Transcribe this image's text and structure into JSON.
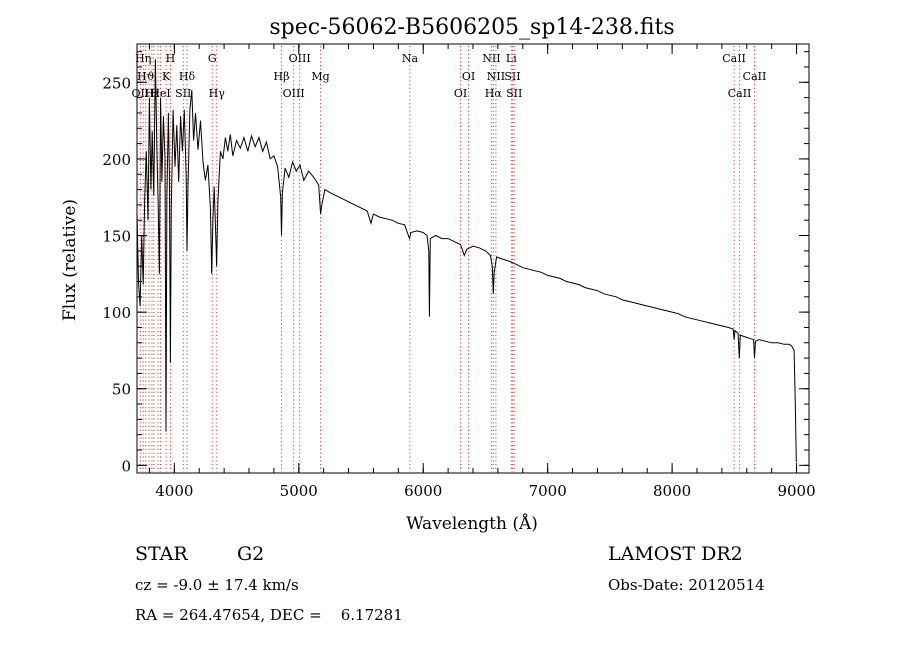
{
  "title": "spec-56062-B5606205_sp14-238.fits",
  "info": {
    "object_class": "STAR",
    "subclass": "G2",
    "survey": "LAMOST DR2",
    "redshift_line": "cz = -9.0 ± 17.4 km/s",
    "obs_date_line": "Obs-Date: 20120514",
    "coords_line": "RA = 264.47654, DEC =    6.17281"
  },
  "chart_data": {
    "type": "line",
    "title": "spec-56062-B5606205_sp14-238.fits",
    "xlabel": "Wavelength (Å)",
    "ylabel": "Flux (relative)",
    "xlim": [
      3700,
      9100
    ],
    "ylim": [
      -5,
      275
    ],
    "x_ticks": [
      4000,
      5000,
      6000,
      7000,
      8000,
      9000
    ],
    "y_ticks": [
      0,
      50,
      100,
      150,
      200,
      250
    ],
    "grid": false,
    "line_color": "#000000",
    "marker_line_color": "#d04040",
    "series": [
      {
        "points": [
          [
            3700,
            165
          ],
          [
            3712,
            120
          ],
          [
            3725,
            104
          ],
          [
            3738,
            150
          ],
          [
            3750,
            118
          ],
          [
            3762,
            175
          ],
          [
            3775,
            205
          ],
          [
            3788,
            160
          ],
          [
            3800,
            240
          ],
          [
            3812,
            180
          ],
          [
            3822,
            218
          ],
          [
            3835,
            176
          ],
          [
            3848,
            265
          ],
          [
            3860,
            205
          ],
          [
            3870,
            170
          ],
          [
            3880,
            125
          ],
          [
            3890,
            240
          ],
          [
            3900,
            185
          ],
          [
            3912,
            228
          ],
          [
            3925,
            200
          ],
          [
            3933,
            22
          ],
          [
            3940,
            175
          ],
          [
            3952,
            230
          ],
          [
            3960,
            190
          ],
          [
            3968,
            67
          ],
          [
            3976,
            168
          ],
          [
            3990,
            232
          ],
          [
            4005,
            195
          ],
          [
            4020,
            222
          ],
          [
            4035,
            185
          ],
          [
            4050,
            228
          ],
          [
            4065,
            205
          ],
          [
            4080,
            232
          ],
          [
            4095,
            188
          ],
          [
            4102,
            140
          ],
          [
            4110,
            182
          ],
          [
            4125,
            232
          ],
          [
            4140,
            245
          ],
          [
            4155,
            212
          ],
          [
            4170,
            230
          ],
          [
            4190,
            206
          ],
          [
            4210,
            225
          ],
          [
            4230,
            198
          ],
          [
            4250,
            186
          ],
          [
            4270,
            196
          ],
          [
            4290,
            168
          ],
          [
            4300,
            125
          ],
          [
            4310,
            160
          ],
          [
            4320,
            182
          ],
          [
            4335,
            145
          ],
          [
            4340,
            130
          ],
          [
            4350,
            172
          ],
          [
            4370,
            205
          ],
          [
            4390,
            200
          ],
          [
            4410,
            214
          ],
          [
            4430,
            205
          ],
          [
            4450,
            216
          ],
          [
            4470,
            202
          ],
          [
            4500,
            212
          ],
          [
            4530,
            207
          ],
          [
            4560,
            214
          ],
          [
            4590,
            205
          ],
          [
            4620,
            215
          ],
          [
            4650,
            208
          ],
          [
            4680,
            214
          ],
          [
            4710,
            205
          ],
          [
            4740,
            211
          ],
          [
            4770,
            200
          ],
          [
            4800,
            202
          ],
          [
            4830,
            195
          ],
          [
            4855,
            175
          ],
          [
            4861,
            150
          ],
          [
            4868,
            178
          ],
          [
            4890,
            194
          ],
          [
            4920,
            188
          ],
          [
            4950,
            198
          ],
          [
            4980,
            192
          ],
          [
            5010,
            196
          ],
          [
            5040,
            186
          ],
          [
            5080,
            192
          ],
          [
            5120,
            188
          ],
          [
            5160,
            183
          ],
          [
            5175,
            164
          ],
          [
            5185,
            170
          ],
          [
            5210,
            180
          ],
          [
            5250,
            178
          ],
          [
            5300,
            176
          ],
          [
            5350,
            174
          ],
          [
            5400,
            172
          ],
          [
            5450,
            170
          ],
          [
            5500,
            168
          ],
          [
            5550,
            166
          ],
          [
            5580,
            158
          ],
          [
            5600,
            164
          ],
          [
            5650,
            162
          ],
          [
            5700,
            161
          ],
          [
            5750,
            160
          ],
          [
            5800,
            158
          ],
          [
            5850,
            157
          ],
          [
            5890,
            148
          ],
          [
            5900,
            152
          ],
          [
            5950,
            153
          ],
          [
            6000,
            152
          ],
          [
            6030,
            150
          ],
          [
            6045,
            140
          ],
          [
            6050,
            97
          ],
          [
            6057,
            148
          ],
          [
            6100,
            150
          ],
          [
            6150,
            148
          ],
          [
            6200,
            148
          ],
          [
            6250,
            146
          ],
          [
            6300,
            144
          ],
          [
            6330,
            137
          ],
          [
            6350,
            141
          ],
          [
            6400,
            143
          ],
          [
            6450,
            142
          ],
          [
            6500,
            140
          ],
          [
            6540,
            137
          ],
          [
            6555,
            130
          ],
          [
            6563,
            112
          ],
          [
            6570,
            126
          ],
          [
            6590,
            136
          ],
          [
            6620,
            135
          ],
          [
            6660,
            134
          ],
          [
            6700,
            133
          ],
          [
            6750,
            131
          ],
          [
            6800,
            129
          ],
          [
            6850,
            128
          ],
          [
            6900,
            127
          ],
          [
            6950,
            126
          ],
          [
            7000,
            124
          ],
          [
            7050,
            123
          ],
          [
            7100,
            122
          ],
          [
            7150,
            120
          ],
          [
            7200,
            119
          ],
          [
            7250,
            118
          ],
          [
            7300,
            116
          ],
          [
            7350,
            115
          ],
          [
            7400,
            114
          ],
          [
            7450,
            112
          ],
          [
            7500,
            111
          ],
          [
            7550,
            110
          ],
          [
            7600,
            108
          ],
          [
            7650,
            107
          ],
          [
            7700,
            106
          ],
          [
            7750,
            105
          ],
          [
            7800,
            104
          ],
          [
            7850,
            103
          ],
          [
            7900,
            102
          ],
          [
            7950,
            101
          ],
          [
            8000,
            100
          ],
          [
            8050,
            99
          ],
          [
            8100,
            97
          ],
          [
            8150,
            96
          ],
          [
            8200,
            95
          ],
          [
            8250,
            94
          ],
          [
            8300,
            93
          ],
          [
            8350,
            92
          ],
          [
            8400,
            91
          ],
          [
            8450,
            90
          ],
          [
            8490,
            89
          ],
          [
            8498,
            82
          ],
          [
            8505,
            88
          ],
          [
            8530,
            86
          ],
          [
            8540,
            70
          ],
          [
            8548,
            85
          ],
          [
            8580,
            84
          ],
          [
            8620,
            83
          ],
          [
            8655,
            82
          ],
          [
            8662,
            70
          ],
          [
            8670,
            81
          ],
          [
            8700,
            82
          ],
          [
            8750,
            81
          ],
          [
            8800,
            80
          ],
          [
            8850,
            80
          ],
          [
            8900,
            79
          ],
          [
            8940,
            79
          ],
          [
            8960,
            78
          ],
          [
            8980,
            75
          ],
          [
            8990,
            40
          ],
          [
            8998,
            2
          ]
        ]
      }
    ],
    "line_markers": [
      {
        "x": 3727,
        "label": "OII",
        "row": 3
      },
      {
        "x": 3750,
        "label": "Hη",
        "row": 1
      },
      {
        "x": 3770,
        "label": "Hϑ",
        "row": 2
      },
      {
        "x": 3797,
        "label": "",
        "row": 0
      },
      {
        "x": 3820,
        "label": "Hε",
        "row": 3
      },
      {
        "x": 3835,
        "label": "",
        "row": 0
      },
      {
        "x": 3869,
        "label": "",
        "row": 0
      },
      {
        "x": 3889,
        "label": "HeI",
        "row": 3
      },
      {
        "x": 3934,
        "label": "K",
        "row": 2
      },
      {
        "x": 3969,
        "label": "H",
        "row": 1
      },
      {
        "x": 4072,
        "label": "SII",
        "row": 3
      },
      {
        "x": 4102,
        "label": "Hδ",
        "row": 2
      },
      {
        "x": 4305,
        "label": "G",
        "row": 1
      },
      {
        "x": 4341,
        "label": "Hγ",
        "row": 3
      },
      {
        "x": 4861,
        "label": "Hβ",
        "row": 2
      },
      {
        "x": 4959,
        "label": "OIII",
        "row": 3
      },
      {
        "x": 5007,
        "label": "OIII",
        "row": 1
      },
      {
        "x": 5175,
        "label": "Mg",
        "row": 2
      },
      {
        "x": 5893,
        "label": "Na",
        "row": 1
      },
      {
        "x": 6300,
        "label": "OI",
        "row": 3
      },
      {
        "x": 6364,
        "label": "OI",
        "row": 2
      },
      {
        "x": 6548,
        "label": "NII",
        "row": 1
      },
      {
        "x": 6563,
        "label": "Hα",
        "row": 3
      },
      {
        "x": 6584,
        "label": "NII",
        "row": 2
      },
      {
        "x": 6708,
        "label": "Li",
        "row": 1
      },
      {
        "x": 6717,
        "label": "SII",
        "row": 2
      },
      {
        "x": 6731,
        "label": "SII",
        "row": 3
      },
      {
        "x": 8498,
        "label": "CaII",
        "row": 1
      },
      {
        "x": 8542,
        "label": "CaII",
        "row": 3
      },
      {
        "x": 8662,
        "label": "CaII",
        "row": 2
      }
    ]
  }
}
